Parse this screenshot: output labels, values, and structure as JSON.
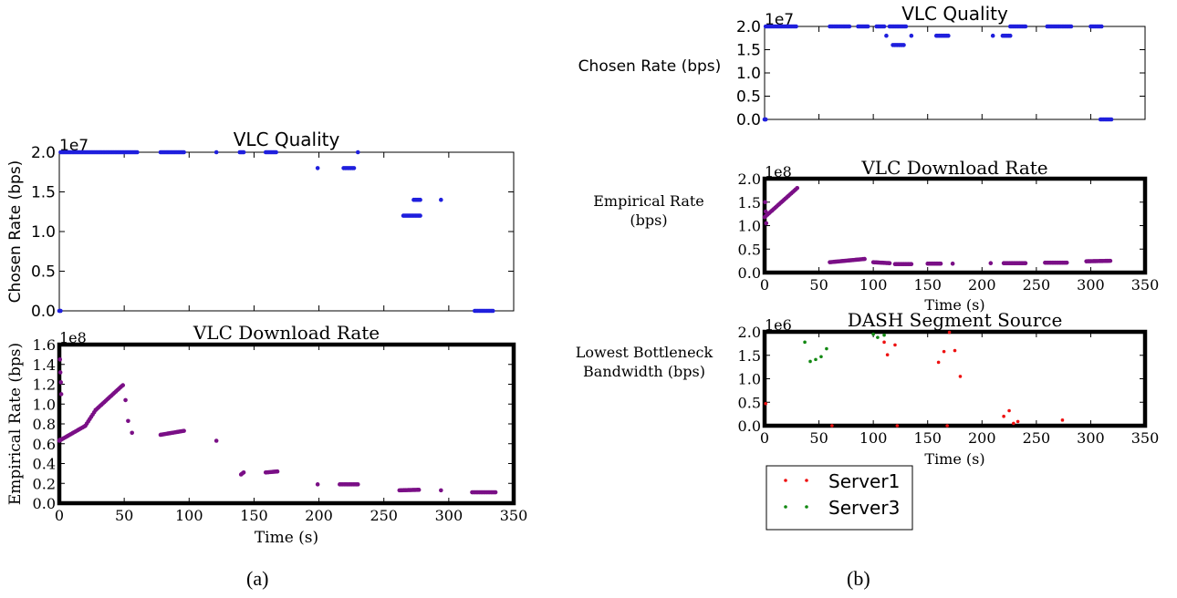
{
  "captions": {
    "a": "(a)",
    "b": "(b)"
  },
  "colors": {
    "blue": "#1f1fdd",
    "purple": "#7a0f86",
    "red": "#ee1111",
    "green": "#118811"
  },
  "chart_data": [
    {
      "id": "a-quality",
      "type": "scatter",
      "title": "VLC Quality",
      "xlabel": "",
      "ylabel": "Chosen Rate (bps)",
      "xlim": [
        0,
        350
      ],
      "ylim": [
        0,
        20000000
      ],
      "xticks": [
        0,
        50,
        100,
        150,
        200,
        250,
        300,
        350
      ],
      "xtick_labels": false,
      "yticks": [
        0,
        5000000,
        10000000,
        15000000,
        20000000
      ],
      "ytick_labels": [
        "0.0",
        "0.5",
        "1.0",
        "1.5",
        "2.0"
      ],
      "offset_label": "1e7",
      "thick_frame": false,
      "series": [
        {
          "color": "blue",
          "segments": [
            [
              0,
              1,
              0,
              0
            ],
            [
              1,
              60,
              20000000,
              20000000
            ],
            [
              78,
              96,
              20000000,
              20000000
            ],
            [
              139,
              142,
              20000000,
              20000000
            ],
            [
              159,
              167,
              20000000,
              20000000
            ],
            [
              219,
              227,
              18000000,
              18000000
            ],
            [
              265,
              278,
              12000000,
              12000000
            ],
            [
              273,
              278,
              14000000,
              14000000
            ],
            [
              320,
              334,
              0,
              0
            ]
          ],
          "points": [
            [
              121,
              20000000
            ],
            [
              199,
              18000000
            ],
            [
              230,
              20000000
            ],
            [
              294,
              14000000
            ]
          ]
        }
      ]
    },
    {
      "id": "a-download",
      "type": "scatter",
      "title": "VLC Download Rate",
      "xlabel": "Time (s)",
      "ylabel": "Empirical Rate (bps)",
      "xlim": [
        0,
        350
      ],
      "ylim": [
        0,
        160000000
      ],
      "xticks": [
        0,
        50,
        100,
        150,
        200,
        250,
        300,
        350
      ],
      "xtick_labels": true,
      "yticks": [
        0,
        20000000,
        40000000,
        60000000,
        80000000,
        100000000,
        120000000,
        140000000,
        160000000
      ],
      "ytick_labels": [
        "0.0",
        "0.2",
        "0.4",
        "0.6",
        "0.8",
        "1.0",
        "1.2",
        "1.4",
        "1.6"
      ],
      "offset_label": "1e8",
      "thick_frame": true,
      "series": [
        {
          "color": "purple",
          "segments": [
            [
              0,
              20,
              63000000,
              78000000
            ],
            [
              20,
              28,
              78000000,
              94000000
            ],
            [
              28,
              48,
              94000000,
              118000000
            ],
            [
              78,
              96,
              69000000,
              73000000
            ],
            [
              140,
              142,
              29000000,
              31000000
            ],
            [
              159,
              168,
              31000000,
              32000000
            ],
            [
              216,
              230,
              19000000,
              19000000
            ],
            [
              262,
              277,
              13000000,
              13500000
            ],
            [
              318,
              336,
              11000000,
              11000000
            ]
          ],
          "points": [
            [
              0.5,
              145000000
            ],
            [
              0.8,
              132000000
            ],
            [
              1.2,
              122000000
            ],
            [
              1.5,
              110000000
            ],
            [
              0.4,
              64000000
            ],
            [
              49,
              119000000
            ],
            [
              51,
              104000000
            ],
            [
              53,
              83000000
            ],
            [
              56,
              71000000
            ],
            [
              121,
              63000000
            ],
            [
              199,
              19000000
            ],
            [
              294,
              13000000
            ]
          ]
        }
      ]
    },
    {
      "id": "b-quality",
      "type": "scatter",
      "title": "VLC Quality",
      "xlabel": "",
      "ylabel": "Chosen Rate (bps)",
      "xlim": [
        0,
        350
      ],
      "ylim": [
        0,
        20000000
      ],
      "xticks": [
        0,
        50,
        100,
        150,
        200,
        250,
        300,
        350
      ],
      "xtick_labels": false,
      "yticks": [
        0,
        5000000,
        10000000,
        15000000,
        20000000
      ],
      "ytick_labels": [
        "0.0",
        "0.5",
        "1.0",
        "1.5",
        "2.0"
      ],
      "offset_label": "1e7",
      "thick_frame": false,
      "series": [
        {
          "color": "blue",
          "segments": [
            [
              0,
              1,
              0,
              0
            ],
            [
              1,
              29,
              20000000,
              20000000
            ],
            [
              60,
              78,
              20000000,
              20000000
            ],
            [
              86,
              95,
              20000000,
              20000000
            ],
            [
              103,
              110,
              20000000,
              20000000
            ],
            [
              115,
              130,
              20000000,
              20000000
            ],
            [
              118,
              128,
              16000000,
              16000000
            ],
            [
              158,
              169,
              18000000,
              18000000
            ],
            [
              219,
              226,
              18000000,
              18000000
            ],
            [
              226,
              240,
              20000000,
              20000000
            ],
            [
              260,
              282,
              20000000,
              20000000
            ],
            [
              300,
              310,
              20000000,
              20000000
            ],
            [
              309,
              319,
              0,
              0
            ]
          ],
          "points": [
            [
              112,
              18000000
            ],
            [
              135,
              18000000
            ],
            [
              210,
              18000000
            ]
          ]
        }
      ]
    },
    {
      "id": "b-download",
      "type": "scatter",
      "title": "VLC Download Rate",
      "xlabel": "Time (s)",
      "ylabel": "Empirical Rate\n(bps)",
      "xlim": [
        0,
        350
      ],
      "ylim": [
        0,
        200000000
      ],
      "xticks": [
        0,
        50,
        100,
        150,
        200,
        250,
        300,
        350
      ],
      "xtick_labels": true,
      "yticks": [
        0,
        50000000,
        100000000,
        150000000,
        200000000
      ],
      "ytick_labels": [
        "0.0",
        "0.5",
        "1.0",
        "1.5",
        "2.0"
      ],
      "offset_label": "1e8",
      "thick_frame": true,
      "series": [
        {
          "color": "purple",
          "segments": [
            [
              0,
              30,
              118000000,
              180000000
            ],
            [
              60,
              92,
              22000000,
              29000000
            ],
            [
              100,
              115,
              22000000,
              20000000
            ],
            [
              120,
              135,
              18000000,
              18000000
            ],
            [
              150,
              162,
              19000000,
              19000000
            ],
            [
              220,
              240,
              20000000,
              20000000
            ],
            [
              258,
              278,
              21000000,
              21000000
            ],
            [
              296,
              318,
              24000000,
              25000000
            ]
          ],
          "points": [
            [
              0.5,
              150000000
            ],
            [
              1,
              130000000
            ],
            [
              1.5,
              105000000
            ],
            [
              173,
              19000000
            ],
            [
              208,
              20000000
            ]
          ]
        }
      ]
    },
    {
      "id": "b-segment",
      "type": "scatter",
      "title": "DASH Segment Source",
      "xlabel": "Time (s)",
      "ylabel": "Lowest Bottleneck\nBandwidth (bps)",
      "xlim": [
        0,
        350
      ],
      "ylim": [
        0,
        2000000
      ],
      "xticks": [
        0,
        50,
        100,
        150,
        200,
        250,
        300,
        350
      ],
      "xtick_labels": true,
      "yticks": [
        0,
        500000,
        1000000,
        1500000,
        2000000
      ],
      "ytick_labels": [
        "0.0",
        "0.5",
        "1.0",
        "1.5",
        "2.0"
      ],
      "offset_label": "1e6",
      "thick_frame": true,
      "series": [
        {
          "name": "Server1",
          "color": "red",
          "segments": [],
          "points": [
            [
              1,
              470000
            ],
            [
              110,
              1780000
            ],
            [
              113,
              1510000
            ],
            [
              120,
              1720000
            ],
            [
              160,
              1350000
            ],
            [
              165,
              1580000
            ],
            [
              175,
              1600000
            ],
            [
              180,
              1050000
            ],
            [
              170,
              1990000
            ],
            [
              220,
              200000
            ],
            [
              225,
              320000
            ],
            [
              229,
              50000
            ],
            [
              233,
              90000
            ],
            [
              274,
              120000
            ],
            [
              62,
              0
            ],
            [
              122,
              0
            ],
            [
              168,
              0
            ]
          ]
        },
        {
          "name": "Server3",
          "color": "green",
          "segments": [],
          "points": [
            [
              37,
              1780000
            ],
            [
              42,
              1370000
            ],
            [
              47,
              1410000
            ],
            [
              52,
              1470000
            ],
            [
              57,
              1640000
            ],
            [
              100,
              1950000
            ],
            [
              104,
              1880000
            ],
            [
              110,
              1930000
            ]
          ]
        }
      ],
      "legend": {
        "placement": "below",
        "entries": [
          "Server1",
          "Server3"
        ]
      }
    }
  ]
}
